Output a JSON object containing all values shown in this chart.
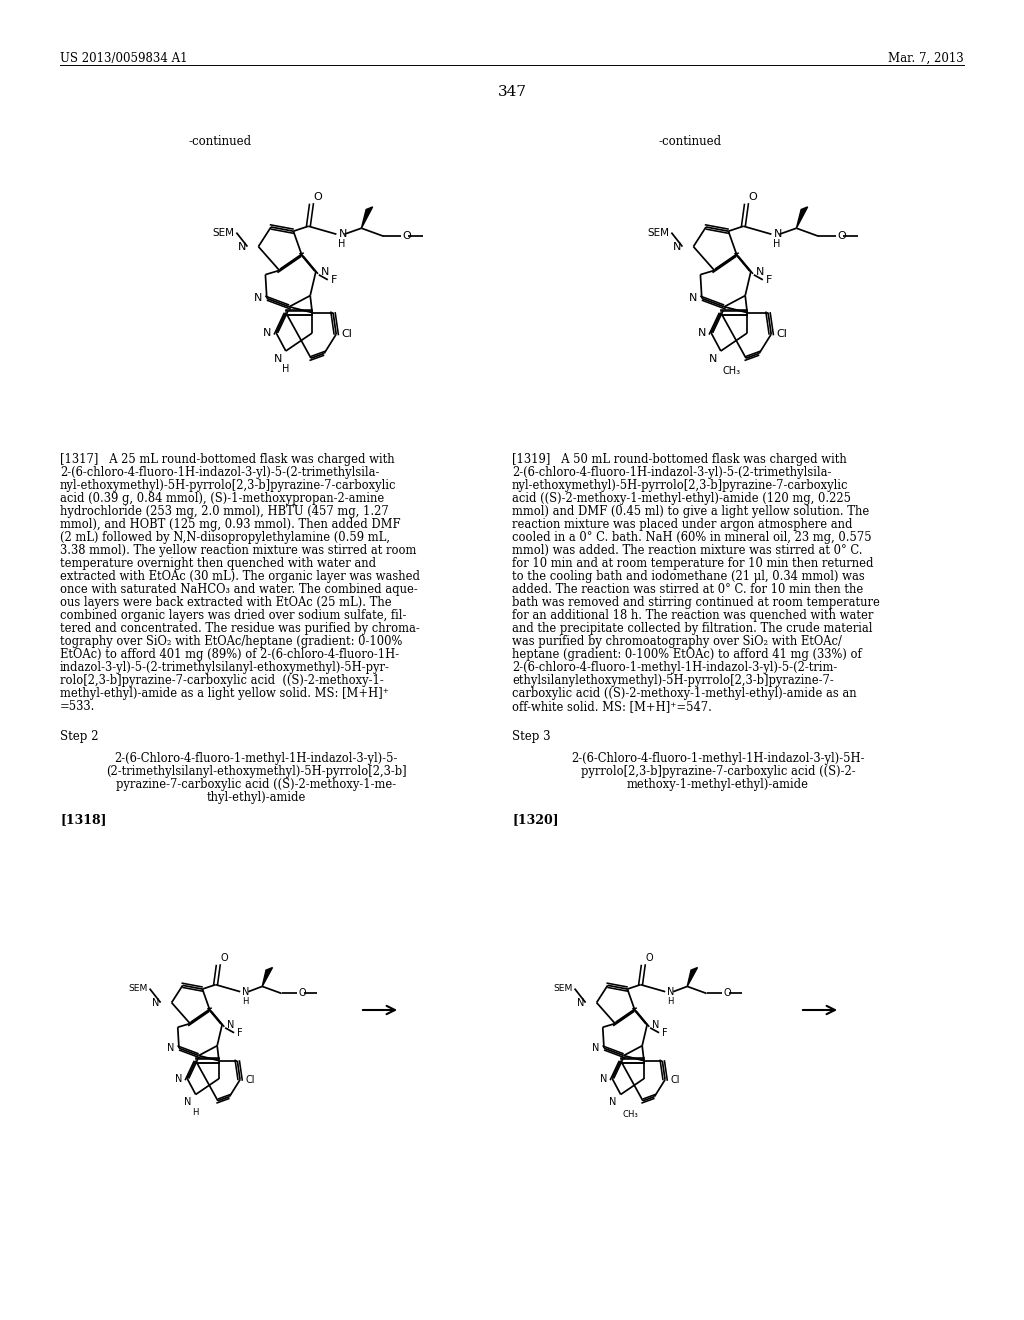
{
  "page_header_left": "US 2013/0059834 A1",
  "page_header_right": "Mar. 7, 2013",
  "page_number": "347",
  "continued_left": "-continued",
  "continued_right": "-continued",
  "step2_label": "Step 2",
  "step3_label": "Step 3",
  "ref1318": "[1318]",
  "ref1320": "[1320]",
  "para1317_lines": [
    "[1317]   A 25 mL round-bottomed flask was charged with",
    "2-(6-chloro-4-fluoro-1H-indazol-3-yl)-5-(2-trimethylsila-",
    "nyl-ethoxymethyl)-5H-pyrrolo[2,3-b]pyrazine-7-carboxylic",
    "acid (0.39 g, 0.84 mmol), (S)-1-methoxypropan-2-amine",
    "hydrochloride (253 mg, 2.0 mmol), HBTU (457 mg, 1.27",
    "mmol), and HOBT (125 mg, 0.93 mmol). Then added DMF",
    "(2 mL) followed by N,N-diisopropylethylamine (0.59 mL,",
    "3.38 mmol). The yellow reaction mixture was stirred at room",
    "temperature overnight then quenched with water and",
    "extracted with EtOAc (30 mL). The organic layer was washed",
    "once with saturated NaHCO₃ and water. The combined aque-",
    "ous layers were back extracted with EtOAc (25 mL). The",
    "combined organic layers was dried over sodium sulfate, fil-",
    "tered and concentrated. The residue was purified by chroma-",
    "tography over SiO₂ with EtOAc/heptane (gradient: 0-100%",
    "EtOAc) to afford 401 mg (89%) of 2-(6-chloro-4-fluoro-1H-",
    "indazol-3-yl)-5-(2-trimethylsilanyl-ethoxymethyl)-5H-pyr-",
    "rolo[2,3-b]pyrazine-7-carboxylic acid  ((S)-2-methoxy-1-",
    "methyl-ethyl)-amide as a light yellow solid. MS: [M+H]⁺",
    "=533."
  ],
  "para1319_lines": [
    "[1319]   A 50 mL round-bottomed flask was charged with",
    "2-(6-chloro-4-fluoro-1H-indazol-3-yl)-5-(2-trimethylsila-",
    "nyl-ethoxymethyl)-5H-pyrrolo[2,3-b]pyrazine-7-carboxylic",
    "acid ((S)-2-methoxy-1-methyl-ethyl)-amide (120 mg, 0.225",
    "mmol) and DMF (0.45 ml) to give a light yellow solution. The",
    "reaction mixture was placed under argon atmosphere and",
    "cooled in a 0° C. bath. NaH (60% in mineral oil, 23 mg, 0.575",
    "mmol) was added. The reaction mixture was stirred at 0° C.",
    "for 10 min and at room temperature for 10 min then returned",
    "to the cooling bath and iodomethane (21 μl, 0.34 mmol) was",
    "added. The reaction was stirred at 0° C. for 10 min then the",
    "bath was removed and stirring continued at room temperature",
    "for an additional 18 h. The reaction was quenched with water",
    "and the precipitate collected by filtration. The crude material",
    "was purified by chromoatography over SiO₂ with EtOAc/",
    "heptane (gradient: 0-100% EtOAc) to afford 41 mg (33%) of",
    "2-(6-chloro-4-fluoro-1-methyl-1H-indazol-3-yl)-5-(2-trim-",
    "ethylsilanylethoxymethyl)-5H-pyrrolo[2,3-b]pyrazine-7-",
    "carboxylic acid ((S)-2-methoxy-1-methyl-ethyl)-amide as an",
    "off-white solid. MS: [M+H]⁺=547."
  ],
  "step2_lines": [
    "2-(6-Chloro-4-fluoro-1-methyl-1H-indazol-3-yl)-5-",
    "(2-trimethylsilanyl-ethoxymethyl)-5H-pyrrolo[2,3-b]",
    "pyrazine-7-carboxylic acid ((S)-2-methoxy-1-me-",
    "thyl-ethyl)-amide"
  ],
  "step3_lines": [
    "2-(6-Chloro-4-fluoro-1-methyl-1H-indazol-3-yl)-5H-",
    "pyrrolo[2,3-b]pyrazine-7-carboxylic acid ((S)-2-",
    "methoxy-1-methyl-ethyl)-amide"
  ],
  "bg_color": "#ffffff"
}
